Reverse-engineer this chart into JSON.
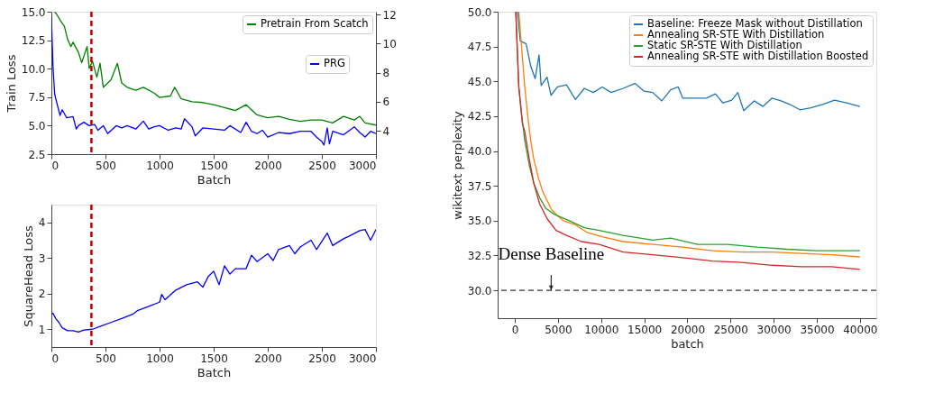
{
  "chart_data": [
    {
      "type": "line",
      "xlabel": "Batch",
      "ylabel": "Train Loss",
      "xlim": [
        0,
        3000
      ],
      "xticks": [
        0,
        500,
        1000,
        1500,
        2000,
        2500,
        3000
      ],
      "ylim": [
        2.5,
        15.0
      ],
      "yticks": [
        {
          "value": 2.5,
          "label": "2.5"
        },
        {
          "value": 5,
          "label": "5.0"
        },
        {
          "value": 7.5,
          "label": "7.5"
        },
        {
          "value": 10,
          "label": "10.0"
        },
        {
          "value": 12.5,
          "label": "12.5"
        },
        {
          "value": 15,
          "label": "15.0"
        }
      ],
      "y2lim": [
        2.4,
        12.2
      ],
      "y2ticks": [
        4,
        6,
        8,
        10,
        12
      ],
      "grid": false,
      "legend": "top right",
      "series": [
        {
          "name": "Pretrain From Scatch",
          "color": "#008000",
          "axis": "y2",
          "x": [
            30,
            50,
            100,
            120,
            150,
            180,
            200,
            250,
            280,
            330,
            350,
            380,
            420,
            450,
            480,
            550,
            610,
            650,
            700,
            780,
            850,
            950,
            1000,
            1100,
            1140,
            1200,
            1300,
            1400,
            1500,
            1600,
            1700,
            1800,
            1900,
            2000,
            2100,
            2200,
            2300,
            2400,
            2500,
            2600,
            2700,
            2800,
            2850,
            2900,
            3000
          ],
          "values": [
            12.2,
            12.0,
            11.4,
            11.2,
            10.3,
            9.8,
            10.1,
            9.4,
            8.7,
            9.8,
            8.3,
            8.8,
            7.7,
            8.65,
            7.0,
            7.5,
            8.65,
            7.3,
            7.0,
            6.8,
            7.0,
            6.6,
            6.3,
            6.4,
            7.0,
            6.2,
            6.0,
            5.95,
            5.8,
            5.6,
            5.4,
            5.8,
            5.1,
            4.9,
            5.0,
            4.8,
            4.65,
            4.75,
            4.75,
            4.55,
            5.0,
            4.75,
            5.0,
            4.55,
            4.4
          ]
        },
        {
          "name": "PRG",
          "color": "#0000ff",
          "axis": "y",
          "x": [
            0,
            15,
            30,
            50,
            80,
            100,
            140,
            200,
            230,
            250,
            300,
            350,
            400,
            430,
            480,
            520,
            600,
            650,
            700,
            780,
            850,
            900,
            950,
            1000,
            1080,
            1150,
            1200,
            1230,
            1300,
            1330,
            1400,
            1500,
            1600,
            1650,
            1750,
            1800,
            1850,
            1900,
            1950,
            2000,
            2100,
            2200,
            2300,
            2400,
            2450,
            2500,
            2520,
            2550,
            2570,
            2600,
            2700,
            2800,
            2850,
            2900,
            2950,
            3000
          ],
          "values": [
            14.5,
            10.2,
            7.8,
            7.0,
            5.9,
            6.4,
            5.7,
            5.8,
            4.7,
            5.0,
            5.3,
            5.0,
            5.1,
            4.6,
            5.0,
            4.3,
            5.0,
            4.8,
            5.0,
            4.7,
            5.4,
            4.7,
            4.9,
            5.0,
            4.6,
            4.8,
            4.7,
            5.6,
            4.9,
            4.1,
            4.8,
            4.7,
            4.6,
            5.0,
            4.4,
            5.3,
            4.5,
            4.3,
            4.6,
            4.0,
            4.4,
            4.3,
            4.5,
            4.5,
            4.0,
            3.6,
            3.3,
            4.8,
            3.4,
            4.5,
            4.2,
            4.9,
            4.4,
            4.0,
            4.5,
            4.3
          ]
        }
      ],
      "ref_lines": [
        {
          "axis": "x",
          "value": 370,
          "label": null,
          "color": "#c00000",
          "line_style": "dashed"
        }
      ]
    },
    {
      "type": "line",
      "xlabel": "Batch",
      "ylabel": "SquareHead Loss",
      "xlim": [
        0,
        3000
      ],
      "xticks": [
        0,
        500,
        1000,
        1500,
        2000,
        2500,
        3000
      ],
      "ylim": [
        0.5,
        4.5
      ],
      "yticks": [
        1,
        2,
        3,
        4
      ],
      "grid": false,
      "legend": false,
      "series": [
        {
          "color": "#0000ff",
          "x": [
            0,
            15,
            40,
            70,
            100,
            150,
            200,
            250,
            300,
            380,
            450,
            550,
            650,
            750,
            800,
            900,
            1000,
            1020,
            1050,
            1150,
            1250,
            1350,
            1400,
            1450,
            1500,
            1550,
            1600,
            1650,
            1700,
            1800,
            1850,
            1900,
            2000,
            2050,
            2100,
            2200,
            2250,
            2300,
            2400,
            2450,
            2550,
            2600,
            2700,
            2750,
            2850,
            2900,
            2950,
            3000
          ],
          "values": [
            1.42,
            1.45,
            1.3,
            1.19,
            1.04,
            0.96,
            0.96,
            0.92,
            0.98,
            1.0,
            1.08,
            1.19,
            1.3,
            1.42,
            1.53,
            1.64,
            1.76,
            1.98,
            1.83,
            2.1,
            2.25,
            2.33,
            2.18,
            2.48,
            2.63,
            2.25,
            2.78,
            2.55,
            2.7,
            2.7,
            3.08,
            2.9,
            3.12,
            2.93,
            3.24,
            3.35,
            3.12,
            3.31,
            3.5,
            3.24,
            3.7,
            3.35,
            3.54,
            3.61,
            3.77,
            3.8,
            3.5,
            3.8
          ]
        }
      ],
      "ref_lines": [
        {
          "axis": "x",
          "value": 370,
          "label": null,
          "color": "#c00000",
          "line_style": "dashed"
        }
      ]
    },
    {
      "type": "line",
      "xlabel": "batch",
      "ylabel": "wikitext perplexity",
      "xlim": [
        -2000,
        41900
      ],
      "xticks": [
        0,
        5000,
        10000,
        15000,
        20000,
        25000,
        30000,
        35000,
        40000
      ],
      "ylim": [
        28.0,
        50.0
      ],
      "yticks": [
        {
          "value": 30,
          "label": "30.0"
        },
        {
          "value": 32.5,
          "label": "32.5"
        },
        {
          "value": 35,
          "label": "35.0"
        },
        {
          "value": 37.5,
          "label": "37.5"
        },
        {
          "value": 40,
          "label": "40.0"
        },
        {
          "value": 42.5,
          "label": "42.5"
        },
        {
          "value": 45,
          "label": "45.0"
        },
        {
          "value": 47.5,
          "label": "47.5"
        },
        {
          "value": 50,
          "label": "50.0"
        }
      ],
      "grid": false,
      "legend": "top right",
      "series": [
        {
          "name": "Baseline: Freeze Mask without Distillation",
          "color": "#1f77b4",
          "x": [
            300,
            620,
            1300,
            1830,
            2350,
            2800,
            3040,
            3730,
            4180,
            4940,
            5980,
            7010,
            8050,
            9080,
            10120,
            11160,
            12540,
            13920,
            14960,
            15990,
            17030,
            18060,
            18930,
            19450,
            20830,
            22210,
            23250,
            24110,
            25150,
            25840,
            26530,
            27740,
            28770,
            29810,
            30840,
            31880,
            33090,
            34300,
            35680,
            37060,
            38440,
            40000
          ],
          "values": [
            50.0,
            47.9,
            47.7,
            46.1,
            45.2,
            46.9,
            44.7,
            45.3,
            44.0,
            44.6,
            44.75,
            43.7,
            44.5,
            44.2,
            44.6,
            44.2,
            44.5,
            44.85,
            44.3,
            44.2,
            43.6,
            44.4,
            44.6,
            43.8,
            43.8,
            43.8,
            44.1,
            43.45,
            43.65,
            44.2,
            42.9,
            43.6,
            43.2,
            43.8,
            43.6,
            43.35,
            42.95,
            43.1,
            43.35,
            43.65,
            43.45,
            43.2
          ]
        },
        {
          "name": "Annealing SR-STE With Distillation",
          "color": "#ff7f0e",
          "x": [
            450,
            860,
            1140,
            1490,
            1830,
            2180,
            2690,
            3210,
            3730,
            4250,
            4940,
            5630,
            7010,
            8390,
            10120,
            12540,
            15990,
            19450,
            22900,
            26350,
            29810,
            33260,
            36720,
            40000
          ],
          "values": [
            50.0,
            46.8,
            44.6,
            42.5,
            40.75,
            39.45,
            38.15,
            37.1,
            36.45,
            35.8,
            35.35,
            35.0,
            34.7,
            34.15,
            33.85,
            33.5,
            33.3,
            33.1,
            32.85,
            32.75,
            32.75,
            32.65,
            32.55,
            32.4
          ]
        },
        {
          "name": "Static SR-STE With Distillation",
          "color": "#2ca02c",
          "x": [
            100,
            450,
            800,
            1140,
            1660,
            2180,
            2870,
            3560,
            4590,
            6320,
            8050,
            9770,
            12540,
            15990,
            18060,
            21170,
            24630,
            28080,
            31540,
            34990,
            40000
          ],
          "values": [
            50.0,
            44.6,
            42.5,
            40.75,
            39.0,
            37.7,
            36.65,
            35.9,
            35.45,
            35.0,
            34.5,
            34.3,
            33.95,
            33.6,
            33.75,
            33.3,
            33.3,
            33.1,
            32.95,
            32.85,
            32.85
          ]
        },
        {
          "name": "Annealing SR-STE with Distillation Boosted",
          "color": "#d62728",
          "x": [
            100,
            450,
            860,
            1140,
            1660,
            2180,
            2870,
            3730,
            4770,
            5980,
            7700,
            9770,
            12540,
            15990,
            19450,
            22900,
            26350,
            29810,
            33260,
            36720,
            40000
          ],
          "values": [
            50.0,
            44.6,
            42.0,
            41.4,
            39.45,
            37.7,
            36.2,
            35.15,
            34.3,
            33.95,
            33.5,
            33.3,
            32.75,
            32.55,
            32.35,
            32.1,
            32.0,
            31.8,
            31.7,
            31.7,
            31.5
          ]
        }
      ],
      "ref_lines": [
        {
          "axis": "y",
          "value": 30,
          "label": null,
          "color": "#000000",
          "line_style": "dashed"
        }
      ],
      "annotations": [
        {
          "text": "Dense Baseline",
          "x": 4200,
          "y": 30
        }
      ]
    }
  ]
}
